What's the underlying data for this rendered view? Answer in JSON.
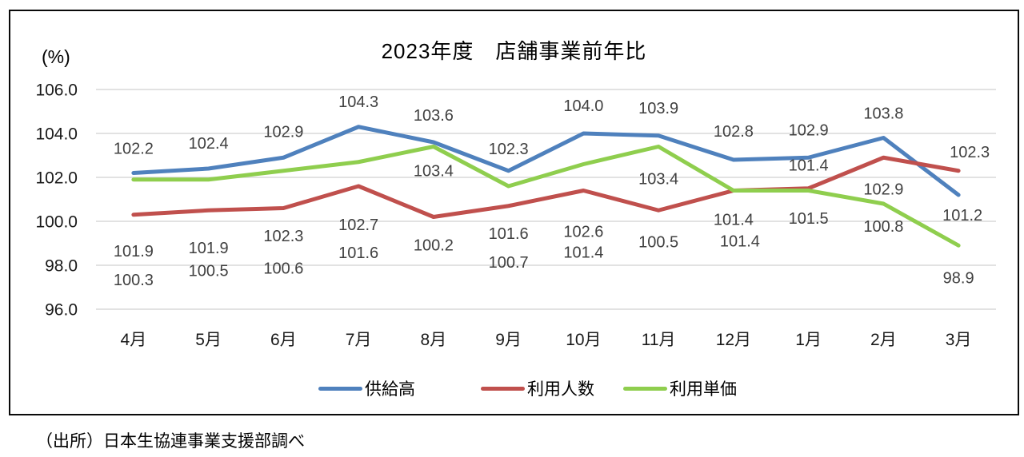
{
  "title": "2023年度　店舗事業前年比",
  "y_axis_unit": "(%)",
  "source_note": "（出所）日本生協連事業支援部調べ",
  "colors": {
    "supply": "#4F81BD",
    "users": "#C0504D",
    "unit_price": "#8FCE4E",
    "gridline": "#D9D9D9",
    "axis_text": "#1a1a1a",
    "label_text": "#404040"
  },
  "chart_data": {
    "type": "line",
    "title": "2023年度　店舗事業前年比",
    "ylabel": "(%)",
    "categories": [
      "4月",
      "5月",
      "6月",
      "7月",
      "8月",
      "9月",
      "10月",
      "11月",
      "12月",
      "1月",
      "2月",
      "3月"
    ],
    "series": [
      {
        "name": "供給高",
        "color_key": "supply",
        "values": [
          102.2,
          102.4,
          102.9,
          104.3,
          103.6,
          102.3,
          104.0,
          103.9,
          102.8,
          102.9,
          103.8,
          101.2
        ]
      },
      {
        "name": "利用人数",
        "color_key": "users",
        "values": [
          100.3,
          100.5,
          100.6,
          101.6,
          100.2,
          100.7,
          101.4,
          100.5,
          101.4,
          101.5,
          102.9,
          102.3
        ]
      },
      {
        "name": "利用単価",
        "color_key": "unit_price",
        "values": [
          101.9,
          101.9,
          102.3,
          102.7,
          103.4,
          101.6,
          102.6,
          103.4,
          101.4,
          101.4,
          100.8,
          98.9
        ]
      }
    ],
    "y_ticks": [
      106.0,
      104.0,
      102.0,
      100.0,
      98.0,
      96.0
    ],
    "ylim": [
      96.0,
      106.0
    ],
    "grid": true,
    "data_labels": true,
    "legend_position": "bottom",
    "label_layout": {
      "supply": {
        "dx": [
          0,
          0,
          0,
          0,
          0,
          0,
          0,
          0,
          0,
          0,
          0,
          5
        ],
        "dy": [
          -31,
          -32,
          -33,
          -32,
          -34,
          -28,
          -35,
          -35,
          -36,
          -35,
          -31,
          25
        ]
      },
      "users": {
        "dx": [
          0,
          0,
          0,
          0,
          0,
          0,
          0,
          0,
          8,
          0,
          0,
          14
        ],
        "dy": [
          81,
          75,
          75,
          83,
          35,
          70,
          77,
          39,
          63,
          37,
          39,
          -24
        ]
      },
      "unit_price": {
        "dx": [
          0,
          0,
          0,
          0,
          0,
          0,
          0,
          0,
          0,
          0,
          0,
          0
        ],
        "dy": [
          89,
          85,
          81,
          78,
          30,
          59,
          84,
          40,
          36,
          -32,
          28,
          40
        ]
      }
    }
  }
}
